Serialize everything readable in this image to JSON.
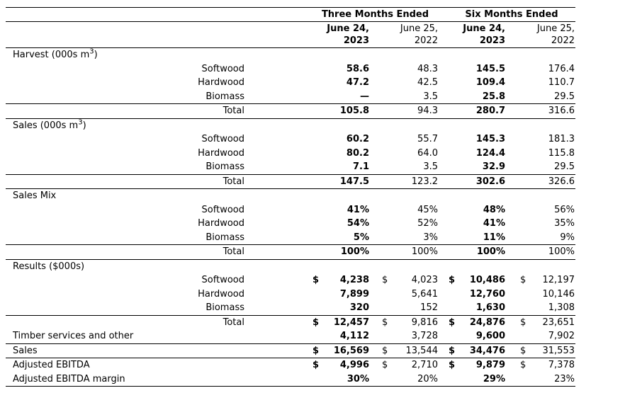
{
  "table": {
    "groups": [
      {
        "label": "Three Months Ended"
      },
      {
        "label": "Six Months Ended"
      }
    ],
    "columns": [
      {
        "month": "June 24,",
        "year": "2023"
      },
      {
        "month": "June 25,",
        "year": "2022"
      },
      {
        "month": "June 24,",
        "year": "2023"
      },
      {
        "month": "June 25,",
        "year": "2022"
      }
    ],
    "sections": [
      {
        "title": {
          "prefix": "Harvest (000s m",
          "sup": "3",
          "suffix": ")"
        },
        "rows": [
          {
            "label": "Softwood",
            "c1": {
              "v": "58.6"
            },
            "c2": {
              "v": "48.3"
            },
            "c3": {
              "v": "145.5"
            },
            "c4": {
              "v": "176.4"
            }
          },
          {
            "label": "Hardwood",
            "c1": {
              "v": "47.2"
            },
            "c2": {
              "v": "42.5"
            },
            "c3": {
              "v": "109.4"
            },
            "c4": {
              "v": "110.7"
            }
          },
          {
            "label": "Biomass",
            "c1": {
              "v": "—"
            },
            "c2": {
              "v": "3.5"
            },
            "c3": {
              "v": "25.8"
            },
            "c4": {
              "v": "29.5"
            }
          }
        ],
        "total": {
          "label": "Total",
          "c1": {
            "v": "105.8"
          },
          "c2": {
            "v": "94.3"
          },
          "c3": {
            "v": "280.7"
          },
          "c4": {
            "v": "316.6"
          }
        }
      },
      {
        "title": {
          "prefix": "Sales (000s m",
          "sup": "3",
          "suffix": ")"
        },
        "rows": [
          {
            "label": "Softwood",
            "c1": {
              "v": "60.2"
            },
            "c2": {
              "v": "55.7"
            },
            "c3": {
              "v": "145.3"
            },
            "c4": {
              "v": "181.3"
            }
          },
          {
            "label": "Hardwood",
            "c1": {
              "v": "80.2"
            },
            "c2": {
              "v": "64.0"
            },
            "c3": {
              "v": "124.4"
            },
            "c4": {
              "v": "115.8"
            }
          },
          {
            "label": "Biomass",
            "c1": {
              "v": "7.1"
            },
            "c2": {
              "v": "3.5"
            },
            "c3": {
              "v": "32.9"
            },
            "c4": {
              "v": "29.5"
            }
          }
        ],
        "total": {
          "label": "Total",
          "c1": {
            "v": "147.5"
          },
          "c2": {
            "v": "123.2"
          },
          "c3": {
            "v": "302.6"
          },
          "c4": {
            "v": "326.6"
          }
        }
      },
      {
        "title": {
          "prefix": "Sales Mix",
          "sup": "",
          "suffix": ""
        },
        "rows": [
          {
            "label": "Softwood",
            "c1": {
              "v": "41%"
            },
            "c2": {
              "v": "45%"
            },
            "c3": {
              "v": "48%"
            },
            "c4": {
              "v": "56%"
            }
          },
          {
            "label": "Hardwood",
            "c1": {
              "v": "54%"
            },
            "c2": {
              "v": "52%"
            },
            "c3": {
              "v": "41%"
            },
            "c4": {
              "v": "35%"
            }
          },
          {
            "label": "Biomass",
            "c1": {
              "v": "5%"
            },
            "c2": {
              "v": "3%"
            },
            "c3": {
              "v": "11%"
            },
            "c4": {
              "v": "9%"
            }
          }
        ],
        "total": {
          "label": "Total",
          "c1": {
            "v": "100%"
          },
          "c2": {
            "v": "100%"
          },
          "c3": {
            "v": "100%"
          },
          "c4": {
            "v": "100%"
          }
        }
      },
      {
        "title": {
          "prefix": "Results ($000s)",
          "sup": "",
          "suffix": ""
        },
        "rows": [
          {
            "label": "Softwood",
            "c1": {
              "d": "$",
              "v": "4,238"
            },
            "c2": {
              "d": "$",
              "v": "4,023"
            },
            "c3": {
              "d": "$",
              "v": "10,486"
            },
            "c4": {
              "d": "$",
              "v": "12,197"
            }
          },
          {
            "label": "Hardwood",
            "c1": {
              "v": "7,899"
            },
            "c2": {
              "v": "5,641"
            },
            "c3": {
              "v": "12,760"
            },
            "c4": {
              "v": "10,146"
            }
          },
          {
            "label": "Biomass",
            "c1": {
              "v": "320"
            },
            "c2": {
              "v": "152"
            },
            "c3": {
              "v": "1,630"
            },
            "c4": {
              "v": "1,308"
            }
          }
        ],
        "total": {
          "label": "Total",
          "c1": {
            "d": "$",
            "v": "12,457"
          },
          "c2": {
            "d": "$",
            "v": "9,816"
          },
          "c3": {
            "d": "$",
            "v": "24,876"
          },
          "c4": {
            "d": "$",
            "v": "23,651"
          }
        }
      }
    ],
    "summary": [
      {
        "label": "Timber services and other",
        "c1": {
          "v": "4,112"
        },
        "c2": {
          "v": "3,728"
        },
        "c3": {
          "v": "9,600"
        },
        "c4": {
          "v": "7,902"
        }
      },
      {
        "label": "Sales",
        "c1": {
          "d": "$",
          "v": "16,569"
        },
        "c2": {
          "d": "$",
          "v": "13,544"
        },
        "c3": {
          "d": "$",
          "v": "34,476"
        },
        "c4": {
          "d": "$",
          "v": "31,553"
        }
      },
      {
        "label": "Adjusted EBITDA",
        "c1": {
          "d": "$",
          "v": "4,996"
        },
        "c2": {
          "d": "$",
          "v": "2,710"
        },
        "c3": {
          "d": "$",
          "v": "9,879"
        },
        "c4": {
          "d": "$",
          "v": "7,378"
        }
      },
      {
        "label": "Adjusted EBITDA margin",
        "c1": {
          "v": "30%"
        },
        "c2": {
          "v": "20%"
        },
        "c3": {
          "v": "29%"
        },
        "c4": {
          "v": "23%"
        }
      }
    ],
    "colors": {
      "text": "#000000",
      "rule": "#000000",
      "background": "#ffffff"
    }
  }
}
